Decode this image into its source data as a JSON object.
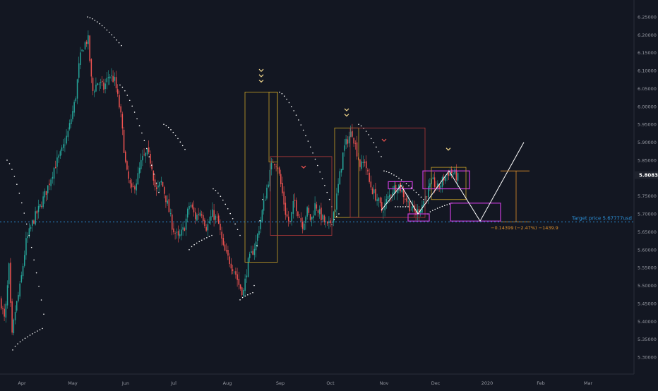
{
  "chart_data": {
    "type": "candlestick",
    "x_tick_labels": [
      "Apr",
      "May",
      "Jun",
      "Jul",
      "Aug",
      "Sep",
      "Oct",
      "Nov",
      "Dec",
      "2020",
      "Feb",
      "Mar"
    ],
    "y_tick_labels": [
      "6.25000",
      "6.20000",
      "6.15000",
      "6.10000",
      "6.05000",
      "6.00000",
      "5.95000",
      "5.90000",
      "5.85000",
      "5.75000",
      "5.70000",
      "5.65000",
      "5.60000",
      "5.55000",
      "5.50000",
      "5.45000",
      "5.40000",
      "5.35000",
      "5.30000"
    ],
    "ylim": [
      5.26,
      6.28
    ],
    "current_price_label": "5.80830",
    "current_price": 5.8083,
    "target_price_label": "Target price 5.67777usd",
    "target_price": 5.67777,
    "measure_label": "−0.14399 (−2.47%) −1439.9",
    "colors": {
      "background": "#131722",
      "up": "#26a69a",
      "down": "#ef5350",
      "sar_dots": "#ffffff",
      "box_gold": "#c9a227",
      "box_red": "#b23a3a",
      "box_magenta": "#c83cdb",
      "projection": "#ffffff",
      "target_line": "#2b8fd6",
      "measure": "#e0902a",
      "axis_text": "#9598a1"
    },
    "icons": [
      "chevron-down-icon"
    ]
  }
}
